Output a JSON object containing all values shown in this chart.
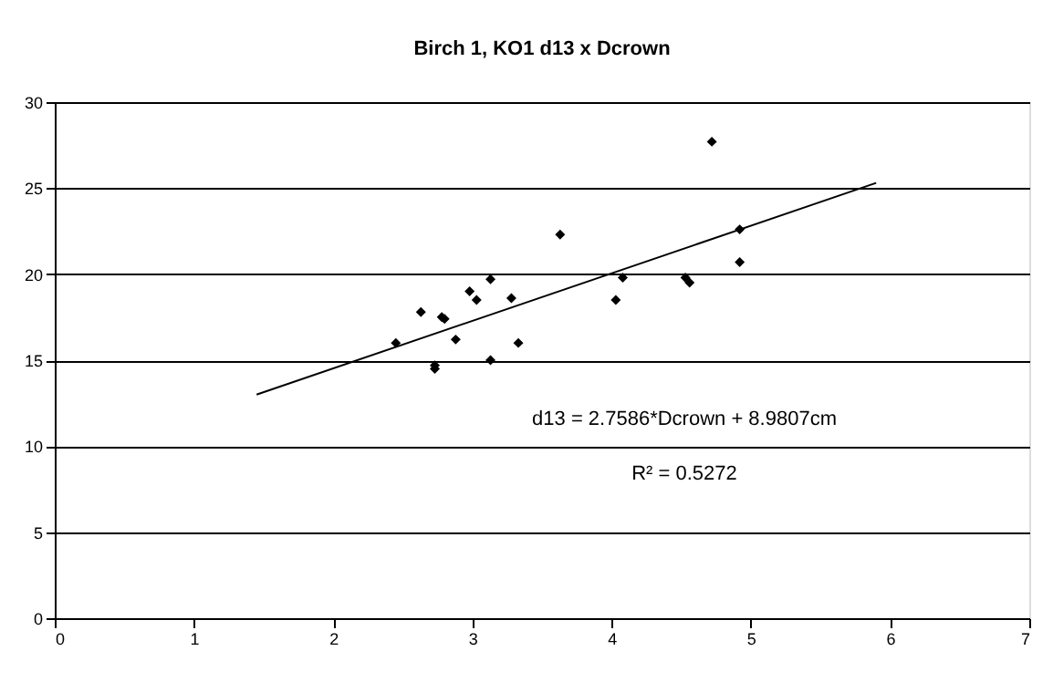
{
  "chart_data": {
    "type": "scatter",
    "title": "Birch 1, KO1   d13 x Dcrown",
    "series": [
      {
        "color": "#000000",
        "marker": "diamond",
        "x": [
          2.45,
          2.63,
          2.73,
          2.73,
          2.78,
          2.8,
          2.88,
          2.98,
          3.03,
          3.13,
          3.13,
          3.28,
          3.33,
          3.63,
          4.03,
          4.08,
          4.53,
          4.56,
          4.72,
          4.92,
          4.92
        ],
        "values": [
          16.0,
          17.8,
          14.7,
          14.5,
          17.5,
          17.4,
          16.2,
          19.0,
          18.5,
          19.7,
          15.0,
          18.6,
          16.0,
          22.3,
          18.5,
          19.8,
          19.8,
          19.5,
          27.7,
          22.6,
          20.7
        ]
      },
      {
        "type": "line",
        "color": "#000000",
        "marker": "none",
        "x": [
          1.45,
          5.9
        ],
        "values": [
          13.0,
          25.3
        ]
      }
    ],
    "annotations": [
      "d13 = 2.7586*Dcrown + 8.9807cm",
      "R² = 0.5272"
    ],
    "xlim": [
      0,
      7
    ],
    "xticks": [
      0,
      1,
      2,
      3,
      4,
      5,
      6,
      7
    ],
    "ylim": [
      0,
      30
    ],
    "yticks": [
      0,
      5,
      10,
      15,
      20,
      25,
      30
    ],
    "grid": "y",
    "legend": false
  }
}
